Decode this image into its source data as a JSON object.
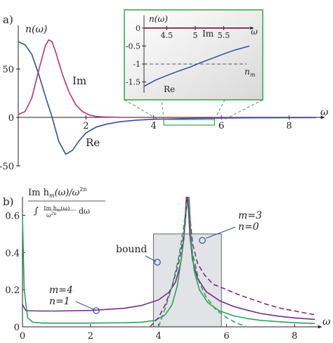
{
  "chart_data": [
    {
      "panel": "a)",
      "type": "line",
      "ylabel": "n(ω)",
      "xlabel": "ω",
      "xlim": [
        0,
        8.8
      ],
      "ylim": [
        -50,
        95
      ],
      "xticks": [
        0,
        2,
        4,
        6,
        8
      ],
      "yticks": [
        -50,
        0,
        50
      ],
      "series": [
        {
          "name": "Im",
          "color": "#c0306a",
          "x": [
            0,
            0.2,
            0.4,
            0.6,
            0.8,
            0.9,
            1.0,
            1.1,
            1.3,
            1.5,
            1.7,
            1.9,
            2.1,
            2.3,
            2.5,
            3.0,
            4.0,
            6.0,
            8.8
          ],
          "y": [
            3,
            6,
            20,
            48,
            74,
            80,
            78,
            68,
            45,
            26,
            13,
            6,
            2.5,
            1,
            0.5,
            0.1,
            0,
            0,
            0
          ]
        },
        {
          "name": "Re",
          "color": "#2f4f9f",
          "x": [
            0,
            0.2,
            0.4,
            0.6,
            0.8,
            1.0,
            1.2,
            1.4,
            1.6,
            1.8,
            2.0,
            2.3,
            2.6,
            3.0,
            3.5,
            4.0,
            5.0,
            6.0,
            7.0,
            8.8
          ],
          "y": [
            78,
            75,
            65,
            45,
            22,
            0,
            -25,
            -38,
            -34,
            -24,
            -16,
            -10,
            -7,
            -4.5,
            -2.8,
            -1.9,
            -1.1,
            -0.7,
            -0.4,
            -0.2
          ]
        }
      ],
      "highlight_box": {
        "x": [
          4.3,
          5.8
        ],
        "y": [
          -5,
          0
        ]
      },
      "inset": {
        "xlabel": "ω",
        "ylabel": "n(ω)",
        "xlim": [
          4.1,
          5.95
        ],
        "ylim": [
          -1.8,
          0.35
        ],
        "xticks": [
          "4.5",
          "5",
          "5.5"
        ],
        "yticks": [
          "0",
          "-0.5",
          "-1",
          "-1.5"
        ],
        "ref_label": "n",
        "ref_sub": "m",
        "ref_value": -1,
        "series": [
          {
            "name": "Im",
            "color": "#7a1f4a",
            "x": [
              4.1,
              5.95
            ],
            "y": [
              0,
              0
            ]
          },
          {
            "name": "Re",
            "color": "#2f4f9f",
            "x": [
              4.1,
              4.3,
              4.5,
              4.7,
              4.9,
              5.1,
              5.3,
              5.5,
              5.7,
              5.95
            ],
            "y": [
              -1.62,
              -1.45,
              -1.32,
              -1.2,
              -1.09,
              -0.96,
              -0.84,
              -0.72,
              -0.61,
              -0.5
            ]
          }
        ]
      }
    },
    {
      "panel": "b)",
      "type": "line",
      "ylabel_top": "Im h",
      "ylabel_top_sub": "m",
      "ylabel_top_rest": "(ω)/ω",
      "ylabel_top_sup": "2n",
      "ylabel_bottom": "∫ Im h_m(ω)/ω^2n dω",
      "xlabel": "ω",
      "xlim": [
        0,
        8.8
      ],
      "ylim": [
        0,
        0.7
      ],
      "xticks": [
        0,
        2,
        4,
        6,
        8
      ],
      "yticks": [
        0,
        0.2,
        0.4,
        0.6
      ],
      "bound_region": {
        "x": [
          3.85,
          5.85
        ],
        "y": [
          0,
          0.5
        ]
      },
      "bound_label": "bound",
      "label_m4": "m=4",
      "label_n1": "n=1",
      "label_m3": "m=3",
      "label_n0": "n=0",
      "series": [
        {
          "name": "",
          "color": "#7a2a8c",
          "x": [
            0,
            0.1,
            0.5,
            1.0,
            2.0,
            3.0,
            3.5,
            4.0,
            4.3,
            4.5,
            4.65,
            4.75,
            4.82
          ],
          "y": [
            0.12,
            0.087,
            0.085,
            0.085,
            0.088,
            0.1,
            0.115,
            0.145,
            0.185,
            0.24,
            0.34,
            0.48,
            0.7
          ]
        },
        {
          "name": "",
          "color": "#2aa35a",
          "x": [
            0,
            0.05,
            0.15,
            0.3,
            0.6,
            1.0,
            2.0,
            3.0,
            3.5,
            3.9,
            4.2,
            4.4,
            4.55,
            4.68,
            4.78,
            4.85
          ],
          "y": [
            0.6,
            0.2,
            0.05,
            0.025,
            0.02,
            0.02,
            0.02,
            0.022,
            0.025,
            0.035,
            0.065,
            0.12,
            0.22,
            0.38,
            0.55,
            0.7
          ]
        },
        {
          "name": "",
          "color": "#7a2a8c",
          "dash": true,
          "x": [
            3.75,
            4.0,
            4.2,
            4.4,
            4.6,
            4.75,
            4.85,
            4.92,
            5.0,
            5.15,
            5.35,
            5.6,
            6.0,
            6.4,
            6.8,
            7.2,
            7.6,
            8.0,
            8.6
          ],
          "y": [
            0.0,
            0.05,
            0.12,
            0.22,
            0.35,
            0.5,
            0.7,
            0.6,
            0.45,
            0.34,
            0.28,
            0.23,
            0.2,
            0.17,
            0.145,
            0.12,
            0.1,
            0.085,
            0.065
          ]
        },
        {
          "name": "",
          "color": "#2aa35a",
          "dash": true,
          "x": [
            4.0,
            4.2,
            4.4,
            4.6,
            4.75,
            4.85,
            4.92,
            5.0,
            5.2,
            5.4,
            5.7,
            6.0,
            6.3,
            6.6
          ],
          "y": [
            0.0,
            0.1,
            0.22,
            0.38,
            0.55,
            0.7,
            0.55,
            0.4,
            0.24,
            0.16,
            0.09,
            0.05,
            0.02,
            0.0
          ]
        },
        {
          "name": "",
          "color": "#7a2a8c",
          "x": [
            4.86,
            4.92,
            5.0,
            5.15,
            5.4,
            5.8,
            6.2,
            6.6,
            7.0,
            7.5,
            8.0,
            8.6
          ],
          "y": [
            0.7,
            0.5,
            0.36,
            0.26,
            0.19,
            0.14,
            0.11,
            0.09,
            0.072,
            0.058,
            0.048,
            0.04
          ]
        },
        {
          "name": "",
          "color": "#2aa35a",
          "x": [
            4.9,
            4.96,
            5.05,
            5.2,
            5.45,
            5.8,
            6.2,
            6.6,
            7.0,
            7.5,
            8.0,
            8.6
          ],
          "y": [
            0.7,
            0.45,
            0.3,
            0.2,
            0.13,
            0.085,
            0.06,
            0.045,
            0.035,
            0.028,
            0.022,
            0.018
          ]
        }
      ]
    }
  ]
}
